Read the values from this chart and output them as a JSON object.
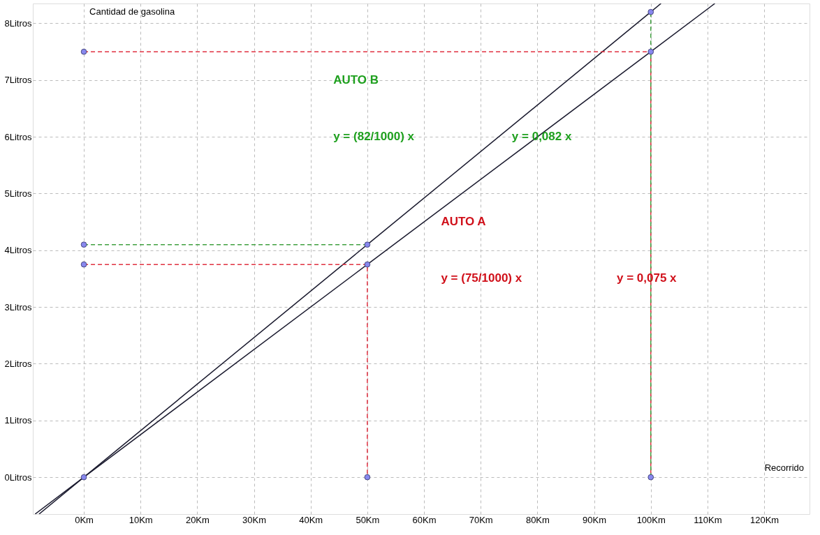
{
  "chart_data": {
    "type": "line",
    "xlabel": "Recorrido",
    "ylabel": "Cantidad de gasolina",
    "xlim": [
      -9,
      128
    ],
    "ylim": [
      -0.65,
      8.35
    ],
    "xticks": [
      {
        "value": 0,
        "label": "0Km"
      },
      {
        "value": 10,
        "label": "10Km"
      },
      {
        "value": 20,
        "label": "20Km"
      },
      {
        "value": 30,
        "label": "30Km"
      },
      {
        "value": 40,
        "label": "40Km"
      },
      {
        "value": 50,
        "label": "50Km"
      },
      {
        "value": 60,
        "label": "60Km"
      },
      {
        "value": 70,
        "label": "70Km"
      },
      {
        "value": 80,
        "label": "80Km"
      },
      {
        "value": 90,
        "label": "90Km"
      },
      {
        "value": 100,
        "label": "100Km"
      },
      {
        "value": 110,
        "label": "110Km"
      },
      {
        "value": 120,
        "label": "120Km"
      }
    ],
    "yticks": [
      {
        "value": 0,
        "label": "0Litros"
      },
      {
        "value": 1,
        "label": "1Litros"
      },
      {
        "value": 2,
        "label": "2Litros"
      },
      {
        "value": 3,
        "label": "3Litros"
      },
      {
        "value": 4,
        "label": "4Litros"
      },
      {
        "value": 5,
        "label": "5Litros"
      },
      {
        "value": 6,
        "label": "6Litros"
      },
      {
        "value": 7,
        "label": "7Litros"
      },
      {
        "value": 8,
        "label": "8Litros"
      }
    ],
    "grid": true,
    "series": [
      {
        "color": "#1a1a2e",
        "line_style": "solid",
        "x": [
          -7.9,
          0,
          50,
          100,
          101.8
        ],
        "values": [
          -0.65,
          0,
          4.1,
          8.2,
          8.35
        ]
      },
      {
        "color": "#1a1a2e",
        "line_style": "solid",
        "x": [
          -8.6,
          0,
          50,
          100,
          111.3
        ],
        "values": [
          -0.65,
          0,
          3.75,
          7.5,
          8.35
        ]
      },
      {
        "type": "line",
        "color": "#e03040",
        "line_style": "dashed",
        "x": [
          0,
          100,
          100
        ],
        "values": [
          7.5,
          7.5,
          0
        ]
      },
      {
        "type": "line",
        "color": "#e03040",
        "line_style": "dashed",
        "x": [
          0,
          50,
          50
        ],
        "values": [
          3.75,
          3.75,
          0
        ]
      },
      {
        "type": "line",
        "color": "#40a040",
        "line_style": "dashed",
        "x": [
          0,
          50
        ],
        "values": [
          4.1,
          4.1
        ]
      },
      {
        "type": "line",
        "color": "#40a040",
        "line_style": "dashed",
        "x": [
          100,
          100
        ],
        "values": [
          0,
          8.2
        ]
      },
      {
        "type": "scatter",
        "color": "#8888ee",
        "x": [
          50,
          100,
          50,
          100,
          0,
          0,
          0,
          50,
          100,
          0
        ],
        "values": [
          4.1,
          8.2,
          3.75,
          7.5,
          7.5,
          4.1,
          3.75,
          0,
          0,
          0
        ]
      }
    ],
    "annotations": [
      "AUTO B",
      "y = (82/1000) x",
      "y = 0,082 x",
      "AUTO A",
      "y = (75/1000) x",
      "y = 0,075 x"
    ]
  }
}
